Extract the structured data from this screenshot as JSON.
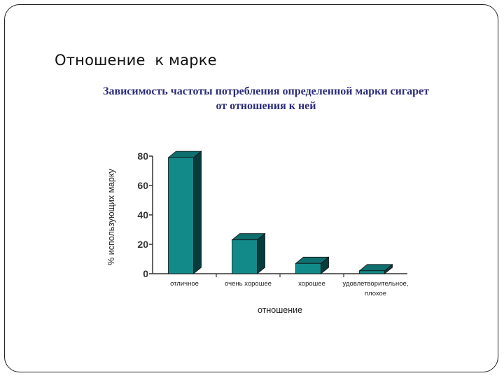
{
  "slide": {
    "title": "Отношение  к марке",
    "subtitle_line1": "Зависимость частоты потребления определенной марки сигарет",
    "subtitle_line2": "от отношения к ней"
  },
  "chart_data": {
    "type": "bar",
    "categories": [
      "отличное",
      "очень хорошее",
      "хорошее",
      "удовлетворительное, плохое"
    ],
    "values": [
      79,
      23,
      7,
      2
    ],
    "xlabel": "отношение",
    "ylabel": "% использующих марку",
    "ylim": [
      0,
      80
    ],
    "yticks": [
      0,
      20,
      40,
      60,
      80
    ],
    "grid": false,
    "style": "3d",
    "colors": {
      "bar_front": "#138a8a",
      "bar_top": "#0f6e6e",
      "bar_side": "#073c3c",
      "axis": "#333333"
    }
  }
}
